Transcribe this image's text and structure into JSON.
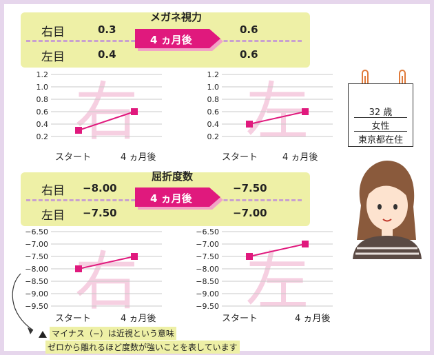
{
  "glasses": {
    "title": "メガネ視力",
    "right_label": "右目",
    "left_label": "左目",
    "right_before": "0.3",
    "right_after": "0.6",
    "left_before": "0.4",
    "left_after": "0.6",
    "arrow": "4 ヵ月後"
  },
  "refraction": {
    "title": "屈折度数",
    "right_label": "右目",
    "left_label": "左目",
    "right_before": "−8.00",
    "right_after": "−7.50",
    "left_before": "−7.50",
    "left_after": "−7.00",
    "arrow": "4 ヵ月後"
  },
  "profile": {
    "age": "32 歳",
    "sex": "女性",
    "location": "東京都在住"
  },
  "note": {
    "line1": "マイナス（−）は近視という意味",
    "line2": "ゼロから離れるほど度数が強いことを表しています"
  },
  "colors": {
    "panel": "#eef0a6",
    "accent": "#e0197d",
    "watermark": "#f6cfe1",
    "frame": "#e6d6ec"
  },
  "chart_data": [
    {
      "type": "line",
      "watermark": "右",
      "categories": [
        "スタート",
        "4 ヵ月後"
      ],
      "yticks": [
        "1.2",
        "1.0",
        "0.8",
        "0.6",
        "0.4",
        "0.2"
      ],
      "ylim": [
        0.2,
        1.2
      ],
      "values": [
        0.3,
        0.6
      ]
    },
    {
      "type": "line",
      "watermark": "左",
      "categories": [
        "スタート",
        "4 ヵ月後"
      ],
      "yticks": [
        "1.2",
        "1.0",
        "0.8",
        "0.6",
        "0.4",
        "0.2"
      ],
      "ylim": [
        0.2,
        1.2
      ],
      "values": [
        0.4,
        0.6
      ]
    },
    {
      "type": "line",
      "watermark": "右",
      "categories": [
        "スタート",
        "4 ヵ月後"
      ],
      "yticks": [
        "−6.50",
        "−7.00",
        "−7.50",
        "−8.00",
        "−8.50",
        "−9.00",
        "−9.50"
      ],
      "ylim": [
        -9.5,
        -6.5
      ],
      "values": [
        -8.0,
        -7.5
      ]
    },
    {
      "type": "line",
      "watermark": "左",
      "categories": [
        "スタート",
        "4 ヵ月後"
      ],
      "yticks": [
        "−6.50",
        "−7.00",
        "−7.50",
        "−8.00",
        "−8.50",
        "−9.00",
        "−9.50"
      ],
      "ylim": [
        -9.5,
        -6.5
      ],
      "values": [
        -7.5,
        -7.0
      ]
    }
  ]
}
